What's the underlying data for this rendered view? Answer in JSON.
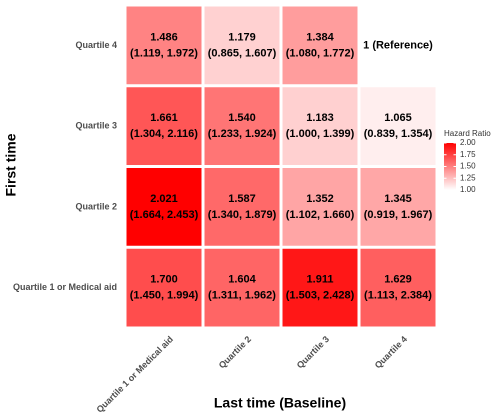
{
  "chart_data": {
    "type": "heatmap",
    "x_label": "Last time (Baseline)",
    "y_label": "First time",
    "x_categories": [
      "Quartile 1 or Medical aid",
      "Quartile 2",
      "Quartile 3",
      "Quartile 4"
    ],
    "y_categories": [
      "Quartile 1 or Medical aid",
      "Quartile 2",
      "Quartile 3",
      "Quartile 4"
    ],
    "values": [
      [
        1.7,
        1.604,
        1.911,
        1.629
      ],
      [
        2.021,
        1.587,
        1.352,
        1.345
      ],
      [
        1.661,
        1.54,
        1.183,
        1.065
      ],
      [
        1.486,
        1.179,
        1.384,
        1
      ]
    ],
    "value_labels": [
      [
        "1.700",
        "1.604",
        "1.911",
        "1.629"
      ],
      [
        "2.021",
        "1.587",
        "1.352",
        "1.345"
      ],
      [
        "1.661",
        "1.540",
        "1.183",
        "1.065"
      ],
      [
        "1.486",
        "1.179",
        "1.384",
        "1 (Reference)"
      ]
    ],
    "ci_labels": [
      [
        "(1.450, 1.994)",
        "(1.311, 1.962)",
        "(1.503, 2.428)",
        "(1.113, 2.384)"
      ],
      [
        "(1.664, 2.453)",
        "(1.340, 1.879)",
        "(1.102, 1.660)",
        "(0.919, 1.967)"
      ],
      [
        "(1.304, 2.116)",
        "(1.233, 1.924)",
        "(1.000, 1.399)",
        "(0.839, 1.354)"
      ],
      [
        "(1.119, 1.972)",
        "(0.865, 1.607)",
        "(1.080, 1.772)",
        null
      ]
    ],
    "colorbar": {
      "title": "Hazard Ratio",
      "lim": [
        1,
        2
      ],
      "low_color": "#ffffff",
      "high_color": "#ff0000",
      "ticks": [
        {
          "value": 1,
          "label": "1.00"
        },
        {
          "value": 1.25,
          "label": "1.25"
        },
        {
          "value": 1.5,
          "label": "1.50"
        },
        {
          "value": 1.75,
          "label": "1.75"
        },
        {
          "value": 2,
          "label": "2.00"
        }
      ]
    }
  }
}
